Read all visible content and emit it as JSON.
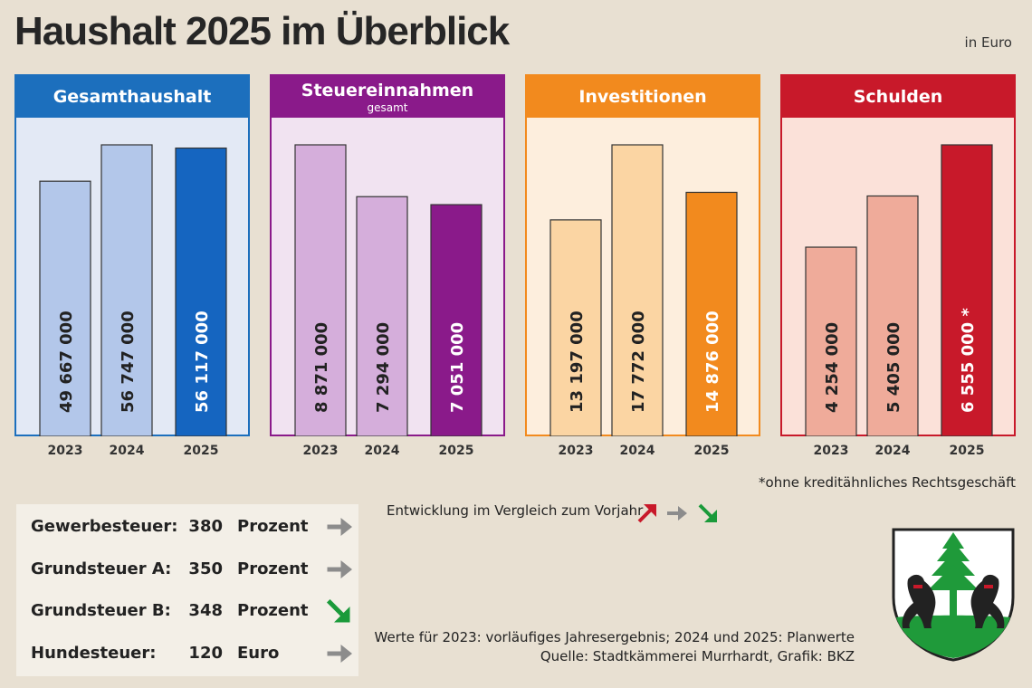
{
  "title": "Haushalt 2025 im Überblick",
  "unit": "in Euro",
  "chart_data": [
    {
      "type": "bar",
      "title": "Gesamthaushalt",
      "subtitle": "",
      "categories": [
        "2023",
        "2024",
        "2025"
      ],
      "values": [
        49667000,
        56747000,
        56117000
      ],
      "labels": [
        "49 667 000",
        "56 747 000",
        "56 117 000"
      ],
      "header_color": "#1c6fbd",
      "bg_color": "#e3e9f5",
      "bar_colors": [
        "#b3c7ea",
        "#b3c7ea",
        "#1565c0"
      ],
      "label_colors": [
        "#222222",
        "#222222",
        "#ffffff"
      ]
    },
    {
      "type": "bar",
      "title": "Steuereinnahmen",
      "subtitle": "gesamt",
      "categories": [
        "2023",
        "2024",
        "2025"
      ],
      "values": [
        8871000,
        7294000,
        7051000
      ],
      "labels": [
        "8 871 000",
        "7 294 000",
        "7 051 000"
      ],
      "header_color": "#8a1a8a",
      "bg_color": "#f1e3f1",
      "bar_colors": [
        "#d5aedb",
        "#d5aedb",
        "#8a1a8a"
      ],
      "label_colors": [
        "#222222",
        "#222222",
        "#ffffff"
      ]
    },
    {
      "type": "bar",
      "title": "Investitionen",
      "subtitle": "",
      "categories": [
        "2023",
        "2024",
        "2025"
      ],
      "values": [
        13197000,
        17772000,
        14876000
      ],
      "labels": [
        "13 197 000",
        "17 772 000",
        "14 876 000"
      ],
      "header_color": "#f28a1e",
      "bg_color": "#fdeedd",
      "bar_colors": [
        "#fbd5a3",
        "#fbd5a3",
        "#f28a1e"
      ],
      "label_colors": [
        "#222222",
        "#222222",
        "#ffffff"
      ]
    },
    {
      "type": "bar",
      "title": "Schulden",
      "subtitle": "",
      "categories": [
        "2023",
        "2024",
        "2025"
      ],
      "values": [
        4254000,
        5405000,
        6555000
      ],
      "labels": [
        "4 254 000",
        "5 405 000",
        "6 555 000 *"
      ],
      "header_color": "#c8192a",
      "bg_color": "#fbe1d9",
      "bar_colors": [
        "#efab9a",
        "#efab9a",
        "#c8192a"
      ],
      "label_colors": [
        "#222222",
        "#222222",
        "#ffffff"
      ]
    }
  ],
  "footnote": "*ohne kreditähnliches Rechtsgeschäft",
  "taxes": [
    {
      "name": "Gewerbesteuer:",
      "value": "380",
      "unit": "Prozent",
      "trend": "same"
    },
    {
      "name": "Grundsteuer A:",
      "value": "350",
      "unit": "Prozent",
      "trend": "same"
    },
    {
      "name": "Grundsteuer B:",
      "value": "348",
      "unit": "Prozent",
      "trend": "down"
    },
    {
      "name": "Hundesteuer:",
      "value": "120",
      "unit": "Euro",
      "trend": "same"
    }
  ],
  "legend": {
    "label": "Entwicklung im Vergleich zum Vorjahr",
    "colors": {
      "up": "#c8192a",
      "same": "#8c8c8c",
      "down": "#1a9a3a"
    }
  },
  "source": {
    "line1": "Werte für 2023: vorläufiges Jahresergebnis; 2024 und 2025: Planwerte",
    "line2": "Quelle: Stadtkämmerei Murrhardt, Grafik: BKZ"
  }
}
